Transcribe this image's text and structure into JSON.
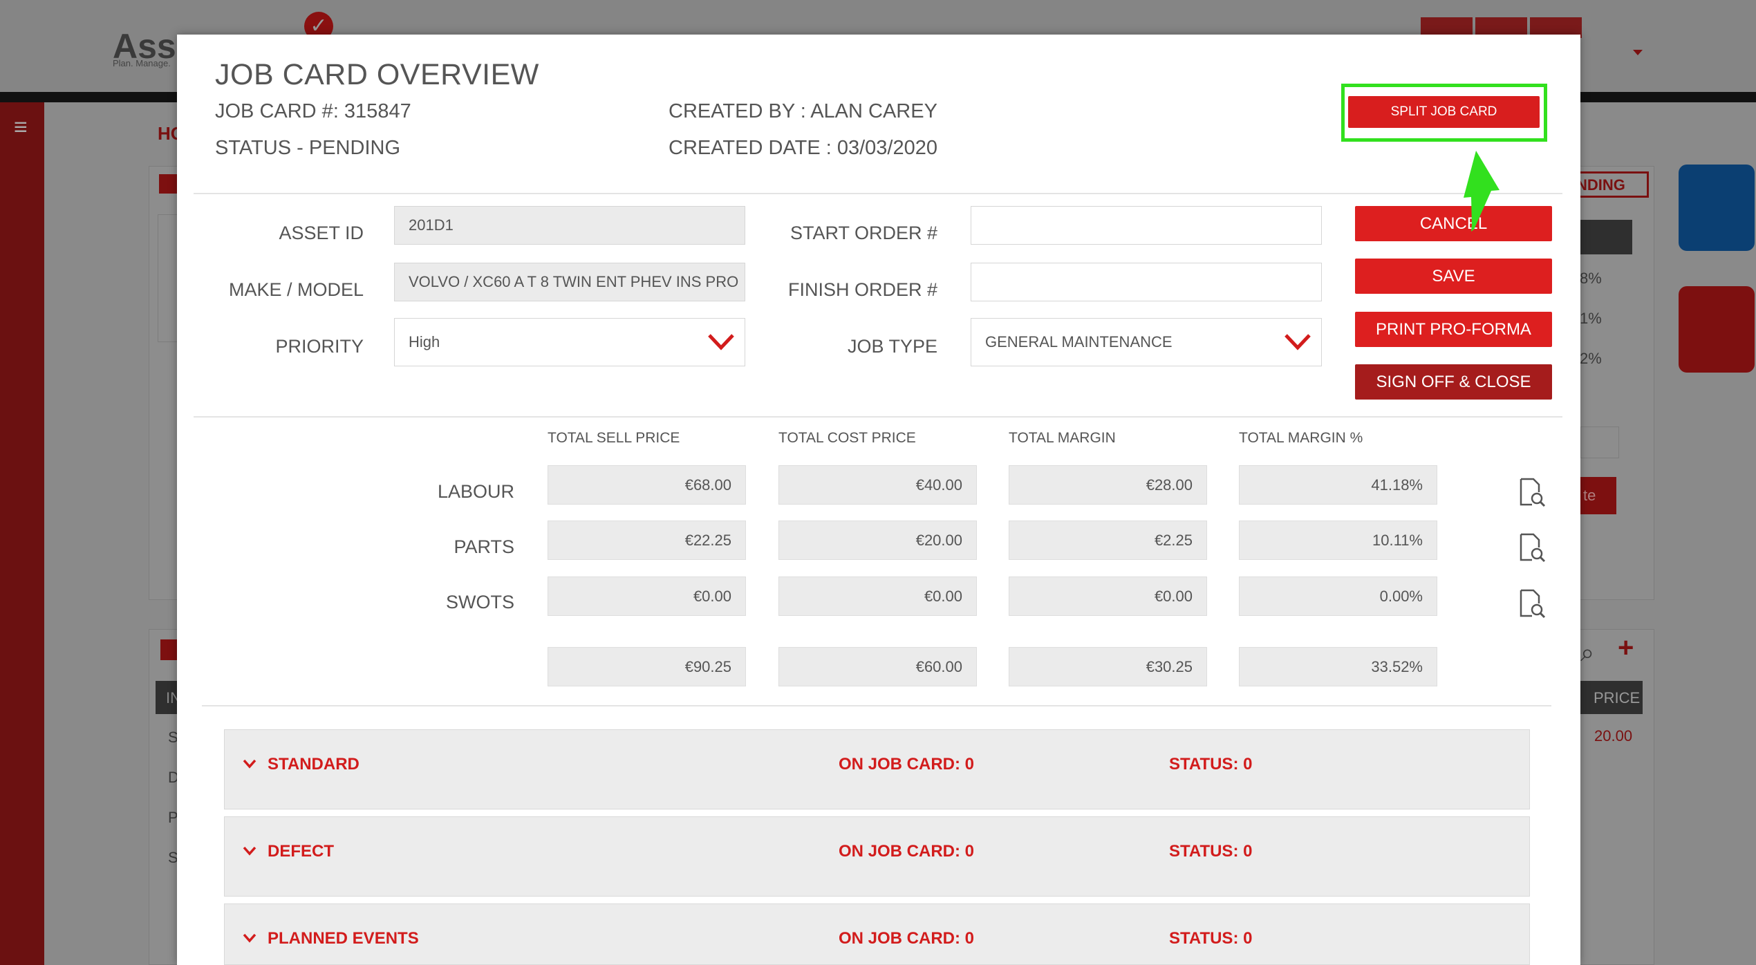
{
  "background": {
    "logo": "Asse",
    "tagline": "Plan. Manage.",
    "nav_home": "HO",
    "pending_badge": "NDING",
    "percents": [
      "8%",
      "1%",
      "2%"
    ],
    "partial_button": "te",
    "table_header": "PRICE",
    "table_value": "20.00",
    "table_first_col": "IN",
    "row_letters": [
      "S",
      "D",
      "P",
      "S"
    ]
  },
  "modal": {
    "title": "JOB CARD OVERVIEW",
    "job_card_number": "JOB CARD #: 315847",
    "status": "STATUS - PENDING",
    "created_by": "CREATED BY :  ALAN CAREY",
    "created_date": "CREATED DATE :  03/03/2020",
    "split_button": "SPLIT JOB CARD"
  },
  "form": {
    "asset_id_label": "ASSET ID",
    "asset_id_value": "201D1",
    "make_model_label": "MAKE / MODEL",
    "make_model_value": "VOLVO / XC60 A T 8 TWIN ENT PHEV INS PRO",
    "priority_label": "PRIORITY",
    "priority_value": "High",
    "start_order_label": "START ORDER #",
    "start_order_value": "",
    "finish_order_label": "FINISH ORDER #",
    "finish_order_value": "",
    "job_type_label": "JOB TYPE",
    "job_type_value": "GENERAL MAINTENANCE"
  },
  "actions": {
    "cancel": "CANCEL",
    "save": "SAVE",
    "print": "PRINT PRO-FORMA",
    "sign_off": "SIGN OFF & CLOSE"
  },
  "totals": {
    "headers": [
      "TOTAL SELL PRICE",
      "TOTAL COST PRICE",
      "TOTAL MARGIN",
      "TOTAL MARGIN %"
    ],
    "rows": [
      {
        "label": "LABOUR",
        "values": [
          "€68.00",
          "€40.00",
          "€28.00",
          "41.18%"
        ]
      },
      {
        "label": "PARTS",
        "values": [
          "€22.25",
          "€20.00",
          "€2.25",
          "10.11%"
        ]
      },
      {
        "label": "SWOTS",
        "values": [
          "€0.00",
          "€0.00",
          "€0.00",
          "0.00%"
        ]
      }
    ],
    "grand": [
      "€90.25",
      "€60.00",
      "€30.25",
      "33.52%"
    ]
  },
  "sections": [
    {
      "title": "STANDARD",
      "on_job_card": "ON JOB CARD: 0",
      "status": "STATUS: 0"
    },
    {
      "title": "DEFECT",
      "on_job_card": "ON JOB CARD: 0",
      "status": "STATUS: 0"
    },
    {
      "title": "PLANNED EVENTS",
      "on_job_card": "ON JOB CARD: 0",
      "status": "STATUS: 0"
    }
  ],
  "colors": {
    "accent": "#dd1f1f",
    "dark_accent": "#a51c1c",
    "highlight": "#32e01e"
  },
  "icons": [
    "hamburger-icon",
    "checkmark-icon",
    "chevron-down-icon",
    "document-search-icon",
    "plus-icon",
    "green-arrow-icon"
  ]
}
